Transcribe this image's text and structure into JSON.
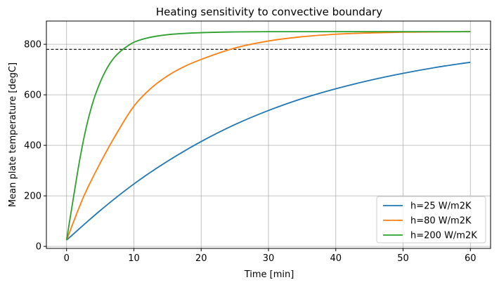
{
  "chart_data": {
    "type": "line",
    "title": "Heating sensitivity to convective boundary",
    "xlabel": "Time [min]",
    "ylabel": "Mean plate temperature [degC]",
    "xlim": [
      -3,
      63
    ],
    "ylim": [
      -8,
      892
    ],
    "xticks": [
      0,
      10,
      20,
      30,
      40,
      50,
      60
    ],
    "yticks": [
      0,
      200,
      400,
      600,
      800
    ],
    "grid": true,
    "legend_position": "lower-right",
    "reference_line": {
      "y": 780,
      "style": "dashed",
      "color": "#000000"
    },
    "series": [
      {
        "name": "h=25 W/m2K",
        "color": "#1f77b4",
        "x": [
          0,
          5,
          10,
          15,
          20,
          25,
          30,
          35,
          40,
          45,
          50,
          55,
          60
        ],
        "y": [
          25,
          142,
          247,
          337,
          415,
          482,
          538,
          585,
          624,
          657,
          685,
          709,
          729
        ]
      },
      {
        "name": "h=80 W/m2K",
        "color": "#ff7f0e",
        "x": [
          0,
          2.5,
          5,
          7.5,
          10,
          12.5,
          15,
          17.5,
          20,
          25,
          30,
          35,
          40,
          45,
          50,
          55,
          60
        ],
        "y": [
          25,
          195,
          330,
          450,
          555,
          625,
          675,
          712,
          740,
          785,
          813,
          830,
          840,
          845,
          848,
          849,
          850
        ]
      },
      {
        "name": "h=200 W/m2K",
        "color": "#2ca02c",
        "x": [
          0,
          1,
          2,
          3,
          4,
          5,
          6,
          7,
          8,
          9,
          10,
          12,
          15,
          20,
          25,
          30,
          40,
          50,
          60
        ],
        "y": [
          25,
          190,
          350,
          480,
          578,
          650,
          705,
          745,
          772,
          792,
          808,
          825,
          838,
          846,
          849,
          850,
          850,
          850,
          850
        ]
      }
    ]
  }
}
